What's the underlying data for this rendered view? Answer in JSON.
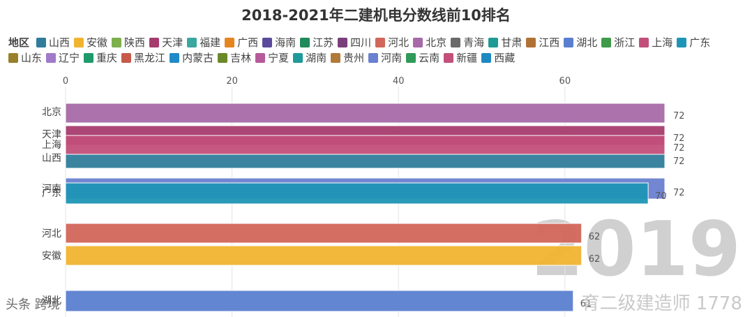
{
  "title": "2018-2021年二建机电分数线前10排名",
  "legend": {
    "title": "地区",
    "items": [
      {
        "name": "山西",
        "color": "#2f7d9b"
      },
      {
        "name": "安徽",
        "color": "#f0b431"
      },
      {
        "name": "陕西",
        "color": "#7db04a"
      },
      {
        "name": "天津",
        "color": "#a63c6e"
      },
      {
        "name": "福建",
        "color": "#3aa7a0"
      },
      {
        "name": "广西",
        "color": "#e6841f"
      },
      {
        "name": "海南",
        "color": "#5a4a9c"
      },
      {
        "name": "江苏",
        "color": "#1f8a5c"
      },
      {
        "name": "四川",
        "color": "#7a3f7a"
      },
      {
        "name": "河北",
        "color": "#d2665a"
      },
      {
        "name": "北京",
        "color": "#a66aa8"
      },
      {
        "name": "青海",
        "color": "#6a6a6a"
      },
      {
        "name": "甘肃",
        "color": "#1f9a94"
      },
      {
        "name": "江西",
        "color": "#b07234"
      },
      {
        "name": "湖北",
        "color": "#5a7fcf"
      },
      {
        "name": "浙江",
        "color": "#3f9a4a"
      },
      {
        "name": "上海",
        "color": "#c24f7a"
      },
      {
        "name": "广东",
        "color": "#1f95b5"
      },
      {
        "name": "山东",
        "color": "#9a7f2a"
      },
      {
        "name": "辽宁",
        "color": "#a07ac8"
      },
      {
        "name": "重庆",
        "color": "#1f9a6a"
      },
      {
        "name": "黑龙江",
        "color": "#c75a4a"
      },
      {
        "name": "内蒙古",
        "color": "#1f8ac8"
      },
      {
        "name": "吉林",
        "color": "#6a8a2a"
      },
      {
        "name": "宁夏",
        "color": "#b55a9a"
      },
      {
        "name": "湖南",
        "color": "#1f9a9a"
      },
      {
        "name": "贵州",
        "color": "#b07a3a"
      },
      {
        "name": "河南",
        "color": "#6a80d0"
      },
      {
        "name": "云南",
        "color": "#2f9a5a"
      },
      {
        "name": "新疆",
        "color": "#c2507a"
      },
      {
        "name": "西藏",
        "color": "#1f88c0"
      }
    ]
  },
  "chart_data": {
    "type": "bar",
    "orientation": "horizontal",
    "title": "2018-2021年二建机电分数线前10排名",
    "x_ticks": [
      0,
      20,
      40,
      60
    ],
    "xlim": [
      0,
      72
    ],
    "grid": true,
    "bars": [
      {
        "category": "北京",
        "value": 72,
        "label": "72",
        "color": "#a66aa8"
      },
      {
        "category": "天津",
        "value": 72,
        "label": "72",
        "color": "#a63c6e"
      },
      {
        "category": "上海",
        "value": 72,
        "label": "72",
        "color": "#c24f7a"
      },
      {
        "category": "山西",
        "value": 72,
        "label": "72",
        "color": "#2f7d9b"
      },
      {
        "category": "河南",
        "value": 72,
        "label": "72",
        "color": "#6a80d0"
      },
      {
        "category": "广东",
        "value": 70,
        "label": "70",
        "color": "#1f95b5"
      },
      {
        "category": "河北",
        "value": 62,
        "label": "62",
        "color": "#d2665a"
      },
      {
        "category": "安徽",
        "value": 62,
        "label": "62",
        "color": "#f0b431"
      },
      {
        "category": "湖北",
        "value": 61,
        "label": "61",
        "color": "#5a7fcf"
      }
    ],
    "year_label": "2019"
  },
  "watermarks": {
    "left": "头条 跨境",
    "right": "育二级建造师 1778"
  }
}
